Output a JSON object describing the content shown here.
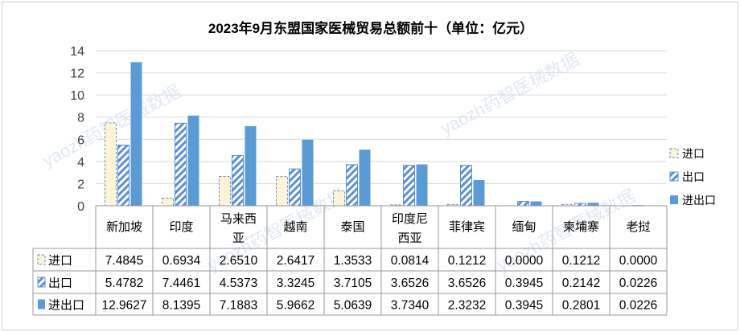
{
  "chart_data": {
    "type": "bar",
    "title": "2023年9月东盟国家医械贸易总额前十（单位：亿元）",
    "categories": [
      "新加坡",
      "印度",
      "马来西亚",
      "越南",
      "泰国",
      "印度尼西亚",
      "菲律宾",
      "缅甸",
      "柬埔寨",
      "老挝"
    ],
    "category_lines": [
      [
        "新加坡"
      ],
      [
        "印度"
      ],
      [
        "马来西",
        "亚"
      ],
      [
        "越南"
      ],
      [
        "泰国"
      ],
      [
        "印度尼",
        "西亚"
      ],
      [
        "菲律宾"
      ],
      [
        "缅甸"
      ],
      [
        "柬埔寨"
      ],
      [
        "老挝"
      ]
    ],
    "series": [
      {
        "name": "进口",
        "values": [
          7.4845,
          0.6934,
          2.651,
          2.6417,
          1.3533,
          0.0814,
          0.1212,
          0.0,
          0.1212,
          0.0
        ],
        "labels": [
          "7.4845",
          "0.6934",
          "2.6510",
          "2.6417",
          "1.3533",
          "0.0814",
          "0.1212",
          "0.0000",
          "0.1212",
          "0.0000"
        ]
      },
      {
        "name": "出口",
        "values": [
          5.4782,
          7.4461,
          4.5373,
          3.3245,
          3.7105,
          3.6526,
          3.6526,
          0.3945,
          0.2142,
          0.0226
        ],
        "labels": [
          "5.4782",
          "7.4461",
          "4.5373",
          "3.3245",
          "3.7105",
          "3.6526",
          "3.6526",
          "0.3945",
          "0.2142",
          "0.0226"
        ]
      },
      {
        "name": "进出口",
        "values": [
          12.9627,
          8.1395,
          7.1883,
          5.9662,
          5.0639,
          3.734,
          2.3232,
          0.3945,
          0.2801,
          0.0226
        ],
        "labels": [
          "12.9627",
          "8.1395",
          "7.1883",
          "5.9662",
          "5.0639",
          "3.7340",
          "2.3232",
          "0.3945",
          "0.2801",
          "0.0226"
        ]
      }
    ],
    "yticks": [
      "0",
      "2",
      "4",
      "6",
      "8",
      "10",
      "12",
      "14"
    ],
    "ylim": [
      0,
      14
    ],
    "grid": true,
    "legend": "right",
    "watermark": "yaozh药智医械数据",
    "colors": {
      "import_fill": "#fdf3d6",
      "import_border": "#6a8fc8",
      "export_stripe": "#5b8fd6",
      "total": "#5b9bd5",
      "grid": "#d9d9d9",
      "table_line": "#9a9a9a",
      "watermark": "#c9d6ea"
    }
  }
}
